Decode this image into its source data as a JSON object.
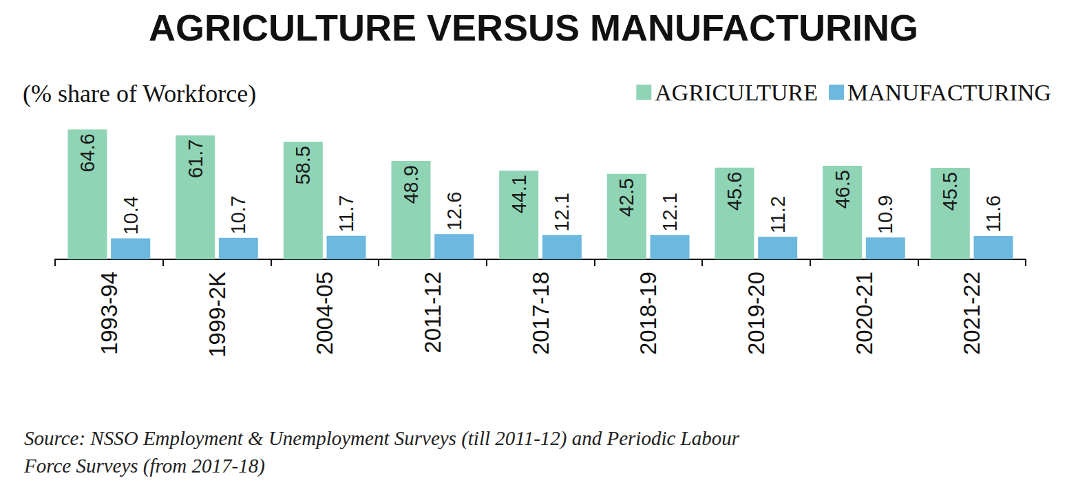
{
  "chart_data": {
    "type": "bar",
    "title": "AGRICULTURE VERSUS MANUFACTURING",
    "subtitle": "(% share of Workforce)",
    "note": "Source: NSSO Employment & Unemployment Surveys (till 2011-12) and Periodic Labour\nForce Surveys (from 2017-18)",
    "categories": [
      "1993-94",
      "1999-2K",
      "2004-05",
      "2011-12",
      "2017-18",
      "2018-19",
      "2019-20",
      "2020-21",
      "2021-22"
    ],
    "series": [
      {
        "name": "AGRICULTURE",
        "color": "#8fd4b5",
        "values": [
          64.6,
          61.7,
          58.5,
          48.9,
          44.1,
          42.5,
          45.6,
          46.5,
          45.5
        ]
      },
      {
        "name": "MANUFACTURING",
        "color": "#6cb8de",
        "values": [
          10.4,
          10.7,
          11.7,
          12.6,
          12.1,
          12.1,
          11.2,
          10.9,
          11.6
        ]
      }
    ],
    "ylim": [
      0,
      65
    ],
    "legend": "top-right",
    "data_labels": true,
    "tick_labels": "x",
    "grid": false
  }
}
